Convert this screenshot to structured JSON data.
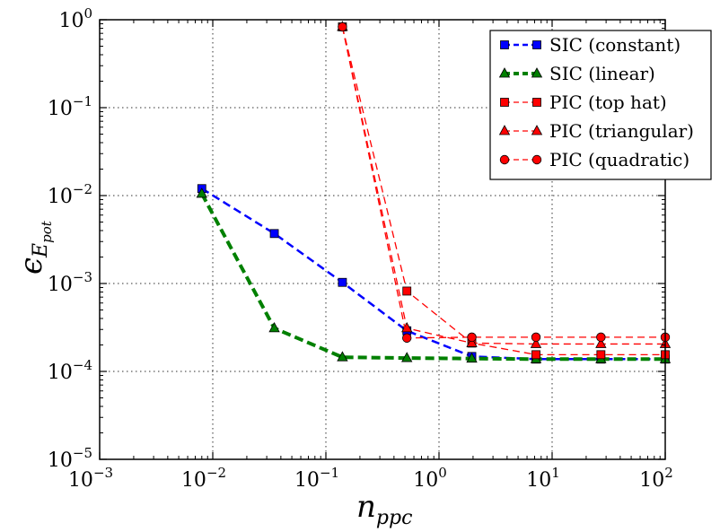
{
  "chart_data": {
    "type": "line",
    "xscale": "log",
    "yscale": "log",
    "xlim": [
      0.001,
      100
    ],
    "ylim": [
      1e-05,
      1
    ],
    "grid": true,
    "legend_position": "top-right",
    "xlabel": {
      "main": "n",
      "sub": "ppc"
    },
    "ylabel": {
      "main": "ϵ",
      "sub_main": "E",
      "sub_sub": "pot"
    },
    "x_ticks": [
      {
        "value": 0.001,
        "base": "10",
        "exp": "−3"
      },
      {
        "value": 0.01,
        "base": "10",
        "exp": "−2"
      },
      {
        "value": 0.1,
        "base": "10",
        "exp": "−1"
      },
      {
        "value": 1,
        "base": "10",
        "exp": "0"
      },
      {
        "value": 10,
        "base": "10",
        "exp": "1"
      },
      {
        "value": 100,
        "base": "10",
        "exp": "2"
      }
    ],
    "y_ticks": [
      {
        "value": 1e-05,
        "base": "10",
        "exp": "−5"
      },
      {
        "value": 0.0001,
        "base": "10",
        "exp": "−4"
      },
      {
        "value": 0.001,
        "base": "10",
        "exp": "−3"
      },
      {
        "value": 0.01,
        "base": "10",
        "exp": "−2"
      },
      {
        "value": 0.1,
        "base": "10",
        "exp": "−1"
      },
      {
        "value": 1,
        "base": "10",
        "exp": "0"
      }
    ],
    "series": [
      {
        "name": "SIC (constant)",
        "color": "#0000ff",
        "marker": "square",
        "style": "bold-dashed",
        "x": [
          0.008,
          0.035,
          0.14,
          0.52,
          1.95,
          7.2,
          27,
          100
        ],
        "y": [
          0.012,
          0.0037,
          0.00103,
          0.00029,
          0.000148,
          0.000138,
          0.000138,
          0.000138
        ]
      },
      {
        "name": "SIC (linear)",
        "color": "#008000",
        "marker": "triangle",
        "style": "thick-dashed",
        "x": [
          0.008,
          0.035,
          0.14,
          0.52,
          1.95,
          7.2,
          27,
          100
        ],
        "y": [
          0.0105,
          0.00031,
          0.000145,
          0.000142,
          0.00014,
          0.000138,
          0.000138,
          0.000138
        ]
      },
      {
        "name": "PIC (top hat)",
        "color": "#ff0000",
        "marker": "square",
        "style": "thin-dashed",
        "x": [
          0.14,
          0.52,
          1.95,
          7.2,
          27,
          100
        ],
        "y": [
          0.83,
          0.00082,
          0.00021,
          0.000155,
          0.000155,
          0.000155
        ]
      },
      {
        "name": "PIC (triangular)",
        "color": "#ff0000",
        "marker": "triangle",
        "style": "thin-dashed",
        "x": [
          0.14,
          0.52,
          1.95,
          7.2,
          27,
          100
        ],
        "y": [
          0.83,
          0.00031,
          0.00021,
          0.000205,
          0.000205,
          0.000205
        ]
      },
      {
        "name": "PIC (quadratic)",
        "color": "#ff0000",
        "marker": "circle",
        "style": "thin-dashed",
        "x": [
          0.14,
          0.52,
          1.95,
          7.2,
          27,
          100
        ],
        "y": [
          0.83,
          0.00024,
          0.000245,
          0.000245,
          0.000245,
          0.000245
        ]
      }
    ]
  }
}
